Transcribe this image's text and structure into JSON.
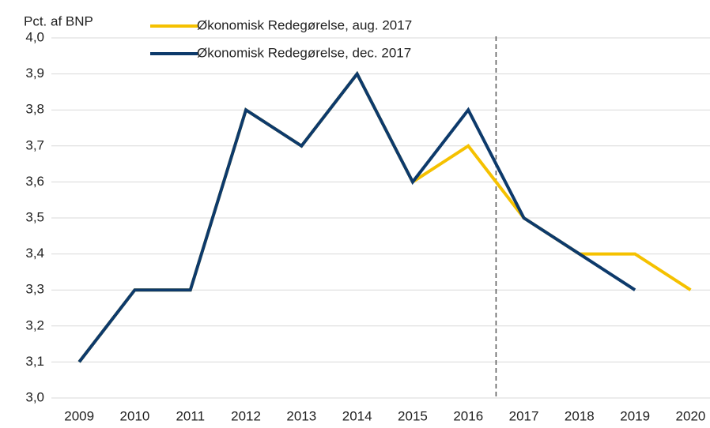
{
  "chart_data": {
    "type": "line",
    "y_label": "Pct. af BNP",
    "categories": [
      "2009",
      "2010",
      "2011",
      "2012",
      "2013",
      "2014",
      "2015",
      "2016",
      "2017",
      "2018",
      "2019",
      "2020"
    ],
    "series": [
      {
        "name": "Økonomisk Redegørelse, aug. 2017",
        "color": "#f5c100",
        "values": [
          3.1,
          3.3,
          3.3,
          3.8,
          3.7,
          3.9,
          3.6,
          3.7,
          3.5,
          3.4,
          3.4,
          3.3
        ]
      },
      {
        "name": "Økonomisk Redegørelse, dec. 2017",
        "color": "#0d3a6b",
        "values": [
          3.1,
          3.3,
          3.3,
          3.8,
          3.7,
          3.9,
          3.6,
          3.8,
          3.5,
          3.4,
          3.3,
          null
        ]
      }
    ],
    "ylim": [
      3.0,
      4.0
    ],
    "yticks": [
      {
        "value": 3.0,
        "label": "3,0"
      },
      {
        "value": 3.1,
        "label": "3,1"
      },
      {
        "value": 3.2,
        "label": "3,2"
      },
      {
        "value": 3.3,
        "label": "3,3"
      },
      {
        "value": 3.4,
        "label": "3,4"
      },
      {
        "value": 3.5,
        "label": "3,5"
      },
      {
        "value": 3.6,
        "label": "3,6"
      },
      {
        "value": 3.7,
        "label": "3,7"
      },
      {
        "value": 3.8,
        "label": "3,8"
      },
      {
        "value": 3.9,
        "label": "3,9"
      },
      {
        "value": 4.0,
        "label": "4,0"
      }
    ],
    "grid": true
  }
}
